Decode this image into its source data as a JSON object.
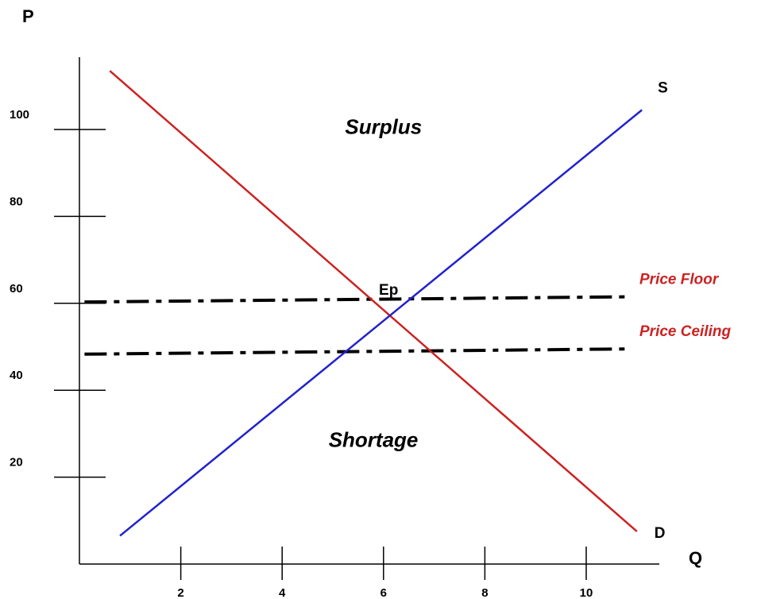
{
  "chart_data": {
    "type": "line",
    "xlabel": "Q",
    "ylabel": "P",
    "xlim": [
      0,
      11.1
    ],
    "ylim": [
      0,
      115
    ],
    "x_ticks": [
      2,
      4,
      6,
      8,
      10
    ],
    "y_ticks": [
      20,
      40,
      60,
      80,
      100
    ],
    "series": [
      {
        "name": "D",
        "color": "#cc2222",
        "points": [
          [
            0.6,
            113.5
          ],
          [
            11.0,
            7.5
          ]
        ]
      },
      {
        "name": "S",
        "color": "#2222cc",
        "points": [
          [
            0.8,
            6.5
          ],
          [
            11.1,
            104.5
          ]
        ]
      }
    ],
    "price_controls": [
      {
        "label": "Price Floor",
        "y_start": 60.3,
        "y_end": 61.5,
        "x_start": 0.1,
        "x_end": 10.8
      },
      {
        "label": "Price Ceiling",
        "y_start": 48.3,
        "y_end": 49.5,
        "x_start": 0.1,
        "x_end": 10.8
      }
    ],
    "annotations": [
      {
        "text": "Surplus",
        "x": 6.0,
        "y": 99
      },
      {
        "text": "Shortage",
        "x": 5.8,
        "y": 27
      },
      {
        "text": "Ep",
        "x": 6.1,
        "y": 62
      }
    ]
  },
  "colors": {
    "control_label": "#cc2222",
    "axis": "#000000",
    "dash_line": "#000000"
  }
}
